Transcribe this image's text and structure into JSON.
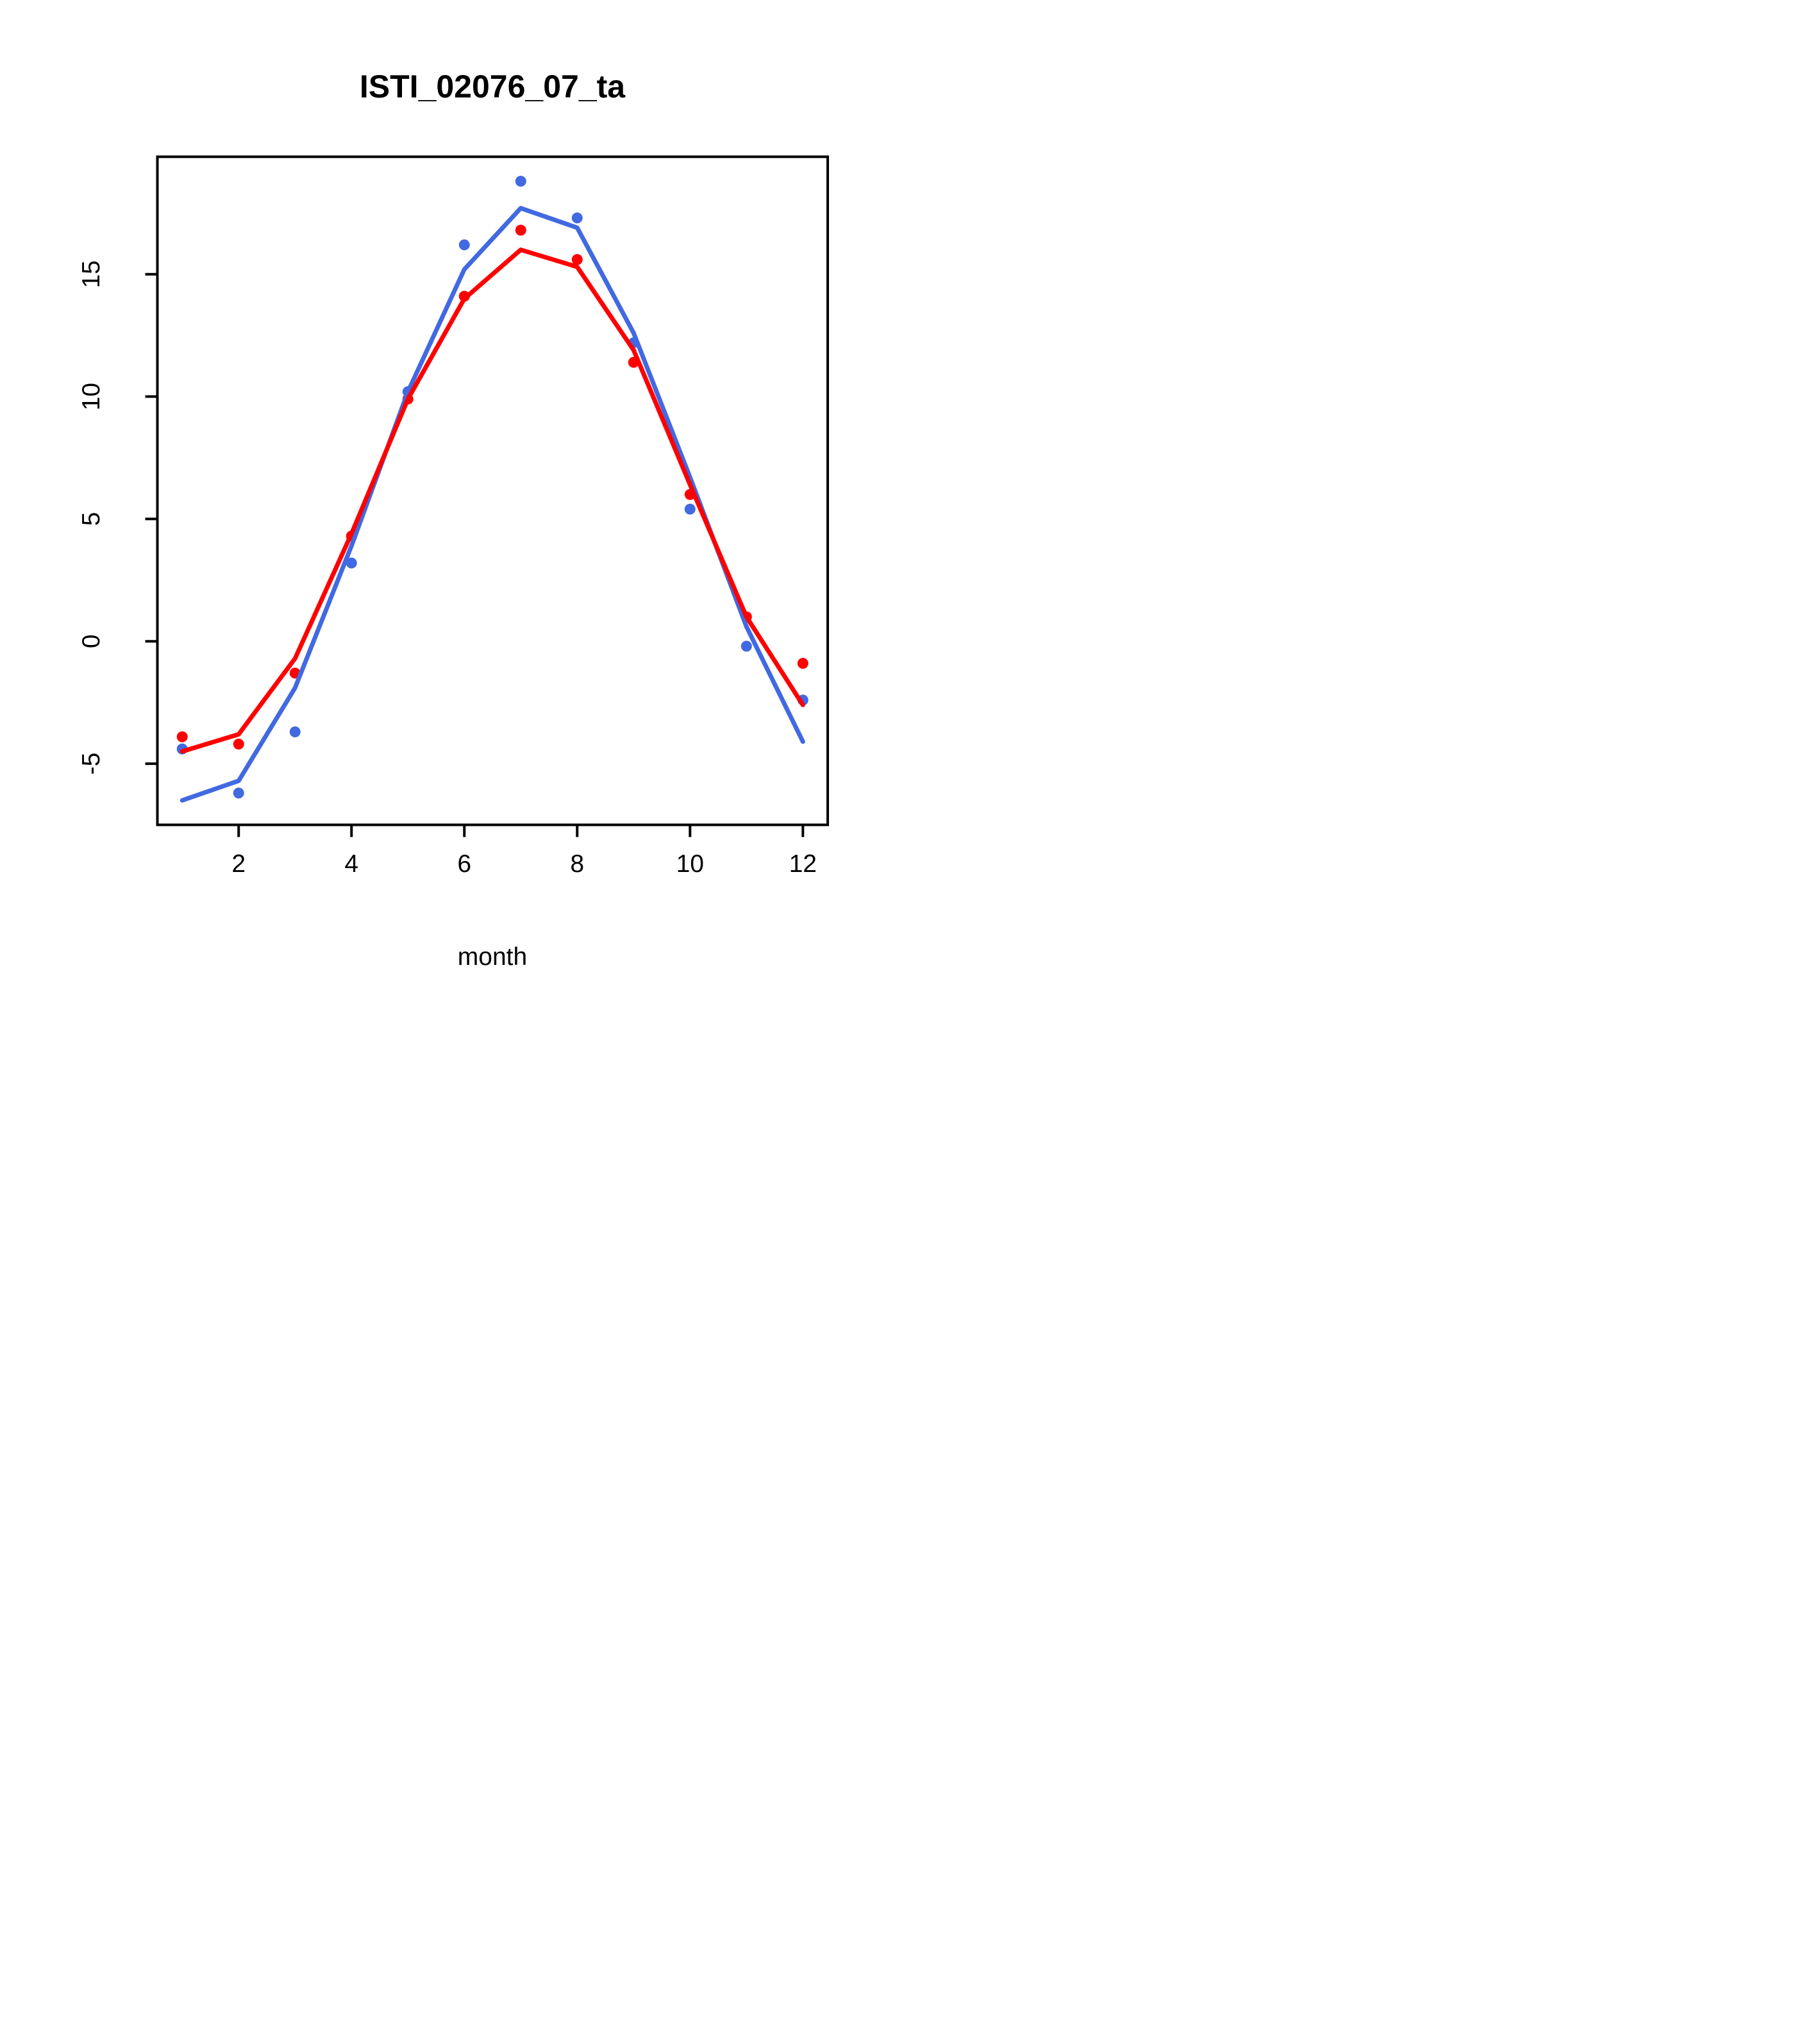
{
  "chart_data": {
    "type": "line",
    "title": "ISTI_02076_07_ta",
    "xlabel": "month",
    "ylabel": "",
    "x": [
      1,
      2,
      3,
      4,
      5,
      6,
      7,
      8,
      9,
      10,
      11,
      12
    ],
    "xlim": [
      0.56,
      12.44
    ],
    "ylim": [
      -7.5,
      19.8
    ],
    "xticks": [
      "2",
      "4",
      "6",
      "8",
      "10",
      "12"
    ],
    "xtick_values": [
      2,
      4,
      6,
      8,
      10,
      12
    ],
    "yticks": [
      "-5",
      "0",
      "5",
      "10",
      "15"
    ],
    "ytick_values": [
      -5,
      0,
      5,
      10,
      15
    ],
    "grid": false,
    "legend": "none",
    "colors": {
      "blue": "#4169E1",
      "red": "#FF0000"
    },
    "series": [
      {
        "name": "blue-points",
        "type": "scatter",
        "color_key": "blue",
        "values": [
          -4.4,
          -6.2,
          -3.7,
          3.2,
          10.2,
          16.2,
          18.8,
          17.3,
          12.2,
          5.4,
          -0.2,
          -2.4
        ]
      },
      {
        "name": "red-points",
        "type": "scatter",
        "color_key": "red",
        "values": [
          -3.9,
          -4.2,
          -1.3,
          4.3,
          9.9,
          14.1,
          16.8,
          15.6,
          11.4,
          6.0,
          1.0,
          -0.9
        ]
      },
      {
        "name": "blue-line",
        "type": "line",
        "color_key": "blue",
        "values": [
          -6.5,
          -5.7,
          -1.9,
          3.9,
          10.2,
          15.2,
          17.7,
          16.9,
          12.6,
          6.7,
          0.6,
          -4.1
        ]
      },
      {
        "name": "red-line",
        "type": "line",
        "color_key": "red",
        "values": [
          -4.5,
          -3.8,
          -0.7,
          4.4,
          9.9,
          14.0,
          16.0,
          15.3,
          11.9,
          6.4,
          1.0,
          -2.6
        ]
      }
    ]
  }
}
